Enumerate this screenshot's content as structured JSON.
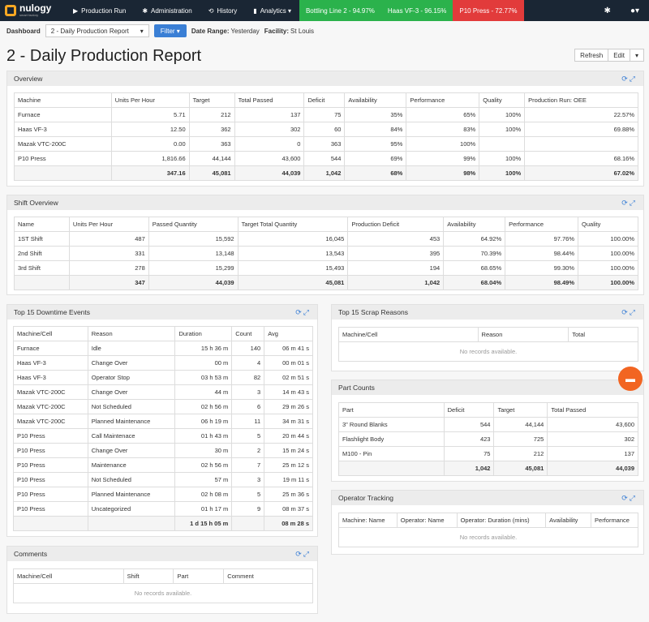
{
  "nav": {
    "brand": "nulogy",
    "brand_sub": "smart factory",
    "items": [
      {
        "label": "Production Run",
        "icon": "▶"
      },
      {
        "label": "Administration",
        "icon": "✱"
      },
      {
        "label": "History",
        "icon": "⟲"
      },
      {
        "label": "Analytics ▾",
        "icon": "▮"
      }
    ],
    "status": [
      {
        "label": "Bottling Line 2 - 94.97%",
        "color": "#2bb24c"
      },
      {
        "label": "Haas VF-3 - 96.15%",
        "color": "#2bb24c"
      },
      {
        "label": "P10 Press - 72.77%",
        "color": "#e23b3b"
      }
    ]
  },
  "dashbar": {
    "label": "Dashboard",
    "selected": "2 - Daily Production Report",
    "filter": "Filter ▾",
    "date_label": "Date Range:",
    "date_value": "Yesterday",
    "facility_label": "Facility:",
    "facility_value": "St Louis"
  },
  "page": {
    "title": "2 - Daily Production Report",
    "refresh": "Refresh",
    "edit": "Edit"
  },
  "overview": {
    "title": "Overview",
    "headers": [
      "Machine",
      "Units Per Hour",
      "Target",
      "Total Passed",
      "Deficit",
      "Availability",
      "Performance",
      "Quality",
      "Production Run: OEE"
    ],
    "rows": [
      [
        "Furnace",
        "5.71",
        "212",
        "137",
        "75",
        "35%",
        "65%",
        "100%",
        "22.57%"
      ],
      [
        "Haas VF-3",
        "12.50",
        "362",
        "302",
        "60",
        "84%",
        "83%",
        "100%",
        "69.88%"
      ],
      [
        "Mazak VTC-200C",
        "0.00",
        "363",
        "0",
        "363",
        "95%",
        "100%",
        "",
        ""
      ],
      [
        "P10 Press",
        "1,816.66",
        "44,144",
        "43,600",
        "544",
        "69%",
        "99%",
        "100%",
        "68.16%"
      ]
    ],
    "total": [
      "",
      "347.16",
      "45,081",
      "44,039",
      "1,042",
      "68%",
      "98%",
      "100%",
      "67.02%"
    ]
  },
  "shift": {
    "title": "Shift Overview",
    "headers": [
      "Name",
      "Units Per Hour",
      "Passed Quantity",
      "Target Total Quantity",
      "Production Deficit",
      "Availability",
      "Performance",
      "Quality"
    ],
    "rows": [
      [
        "1ST Shift",
        "487",
        "15,592",
        "16,045",
        "453",
        "64.92%",
        "97.76%",
        "100.00%"
      ],
      [
        "2nd Shift",
        "331",
        "13,148",
        "13,543",
        "395",
        "70.39%",
        "98.44%",
        "100.00%"
      ],
      [
        "3rd Shift",
        "278",
        "15,299",
        "15,493",
        "194",
        "68.65%",
        "99.30%",
        "100.00%"
      ]
    ],
    "total": [
      "",
      "347",
      "44,039",
      "45,081",
      "1,042",
      "68.04%",
      "98.49%",
      "100.00%"
    ]
  },
  "downtime": {
    "title": "Top 15 Downtime Events",
    "headers": [
      "Machine/Cell",
      "Reason",
      "Duration",
      "Count",
      "Avg"
    ],
    "rows": [
      [
        "Furnace",
        "Idle",
        "15 h 36 m",
        "140",
        "06 m 41 s"
      ],
      [
        "Haas VF-3",
        "Change Over",
        "00 m",
        "4",
        "00 m 01 s"
      ],
      [
        "Haas VF-3",
        "Operator Stop",
        "03 h 53 m",
        "82",
        "02 m 51 s"
      ],
      [
        "Mazak VTC-200C",
        "Change Over",
        "44 m",
        "3",
        "14 m 43 s"
      ],
      [
        "Mazak VTC-200C",
        "Not Scheduled",
        "02 h 56 m",
        "6",
        "29 m 26 s"
      ],
      [
        "Mazak VTC-200C",
        "Planned Maintenance",
        "06 h 19 m",
        "11",
        "34 m 31 s"
      ],
      [
        "P10 Press",
        "Call Maintenace",
        "01 h 43 m",
        "5",
        "20 m 44 s"
      ],
      [
        "P10 Press",
        "Change Over",
        "30 m",
        "2",
        "15 m 24 s"
      ],
      [
        "P10 Press",
        "Maintenance",
        "02 h 56 m",
        "7",
        "25 m 12 s"
      ],
      [
        "P10 Press",
        "Not Scheduled",
        "57 m",
        "3",
        "19 m 11 s"
      ],
      [
        "P10 Press",
        "Planned Maintenance",
        "02 h 08 m",
        "5",
        "25 m 36 s"
      ],
      [
        "P10 Press",
        "Uncategorized",
        "01 h 17 m",
        "9",
        "08 m 37 s"
      ]
    ],
    "total": [
      "",
      "",
      "1 d 15 h 05 m",
      "",
      "08 m 28 s"
    ]
  },
  "scrap": {
    "title": "Top 15 Scrap Reasons",
    "headers": [
      "Machine/Cell",
      "Reason",
      "Total"
    ],
    "empty": "No records available."
  },
  "parts": {
    "title": "Part Counts",
    "headers": [
      "Part",
      "Deficit",
      "Target",
      "Total Passed"
    ],
    "rows": [
      [
        "3\" Round Blanks",
        "544",
        "44,144",
        "43,600"
      ],
      [
        "Flashlight Body",
        "423",
        "725",
        "302"
      ],
      [
        "M100 - Pin",
        "75",
        "212",
        "137"
      ]
    ],
    "total": [
      "",
      "1,042",
      "45,081",
      "44,039"
    ]
  },
  "operator": {
    "title": "Operator Tracking",
    "headers": [
      "Machine: Name",
      "Operator: Name",
      "Operator: Duration (mins)",
      "Availability",
      "Performance"
    ],
    "empty": "No records available."
  },
  "comments": {
    "title": "Comments",
    "headers": [
      "Machine/Cell",
      "Shift",
      "Part",
      "Comment"
    ],
    "empty": "No records available."
  }
}
